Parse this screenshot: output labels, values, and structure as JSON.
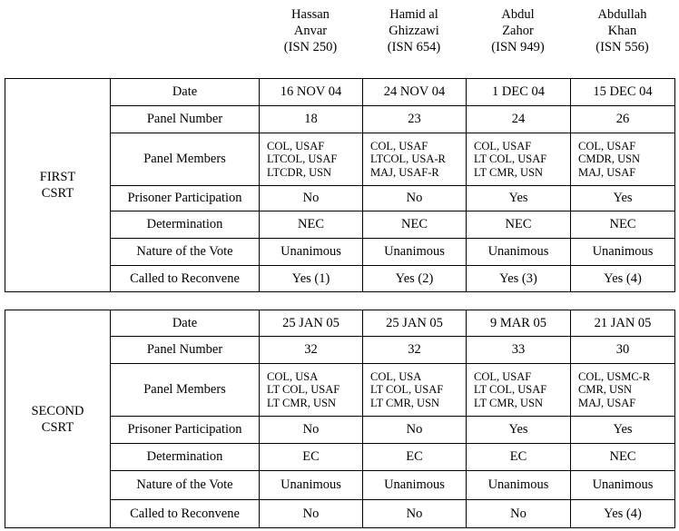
{
  "detainees": [
    {
      "name_lines": [
        "Hassan",
        "Anvar"
      ],
      "isn": "(ISN 250)"
    },
    {
      "name_lines": [
        "Hamid al",
        "Ghizzawi"
      ],
      "isn": "(ISN 654)"
    },
    {
      "name_lines": [
        "Abdul",
        "Zahor"
      ],
      "isn": "(ISN 949)"
    },
    {
      "name_lines": [
        "Abdullah",
        "Khan"
      ],
      "isn": "(ISN 556)"
    }
  ],
  "row_labels": [
    "Date",
    "Panel Number",
    "Panel Members",
    "Prisoner Participation",
    "Determination",
    "Nature of the Vote",
    "Called to Reconvene"
  ],
  "sections": [
    {
      "label_lines": [
        "FIRST",
        "CSRT"
      ],
      "rows": [
        [
          "16 NOV 04",
          "24 NOV 04",
          "1 DEC 04",
          "15 DEC 04"
        ],
        [
          "18",
          "23",
          "24",
          "26"
        ],
        [
          [
            "COL, USAF",
            "LTCOL, USAF",
            "LTCDR, USN"
          ],
          [
            "COL, USAF",
            "LTCOL, USA-R",
            "MAJ, USAF-R"
          ],
          [
            "COL, USAF",
            "LT COL, USAF",
            "LT CMR, USN"
          ],
          [
            "COL, USAF",
            "CMDR, USN",
            "MAJ, USAF"
          ]
        ],
        [
          "No",
          "No",
          "Yes",
          "Yes"
        ],
        [
          "NEC",
          "NEC",
          "NEC",
          "NEC"
        ],
        [
          "Unanimous",
          "Unanimous",
          "Unanimous",
          "Unanimous"
        ],
        [
          "Yes (1)",
          "Yes (2)",
          "Yes (3)",
          "Yes (4)"
        ]
      ]
    },
    {
      "label_lines": [
        "SECOND",
        "CSRT"
      ],
      "rows": [
        [
          "25 JAN 05",
          "25 JAN 05",
          "9 MAR 05",
          "21 JAN 05"
        ],
        [
          "32",
          "32",
          "33",
          "30"
        ],
        [
          [
            "COL, USA",
            "LT COL, USAF",
            "LT CMR, USN"
          ],
          [
            "COL, USA",
            "LT COL, USAF",
            "LT CMR, USN"
          ],
          [
            "COL, USAF",
            "LT COL, USAF",
            "LT CMR, USN"
          ],
          [
            "COL, USMC-R",
            "CMR, USN",
            "MAJ, USAF"
          ]
        ],
        [
          "No",
          "No",
          "Yes",
          "Yes"
        ],
        [
          "EC",
          "EC",
          "EC",
          "NEC"
        ],
        [
          "Unanimous",
          "Unanimous",
          "Unanimous",
          "Unanimous"
        ],
        [
          "No",
          "No",
          "No",
          "Yes (4)"
        ]
      ]
    }
  ]
}
